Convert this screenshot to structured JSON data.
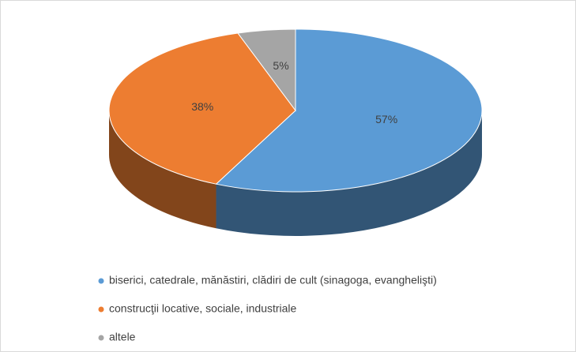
{
  "chart_data": {
    "type": "pie",
    "categories": [
      "biserici, catedrale, mănăstiri, clădiri de cult (sinagoga, evanghelişti)",
      "construcţii locative, sociale, industriale",
      "altele"
    ],
    "values": [
      57,
      38,
      5
    ],
    "value_labels": [
      "57%",
      "38%",
      "5%"
    ],
    "colors": [
      "#5b9bd5",
      "#ed7d31",
      "#a5a5a5"
    ],
    "legend": "bottom"
  }
}
